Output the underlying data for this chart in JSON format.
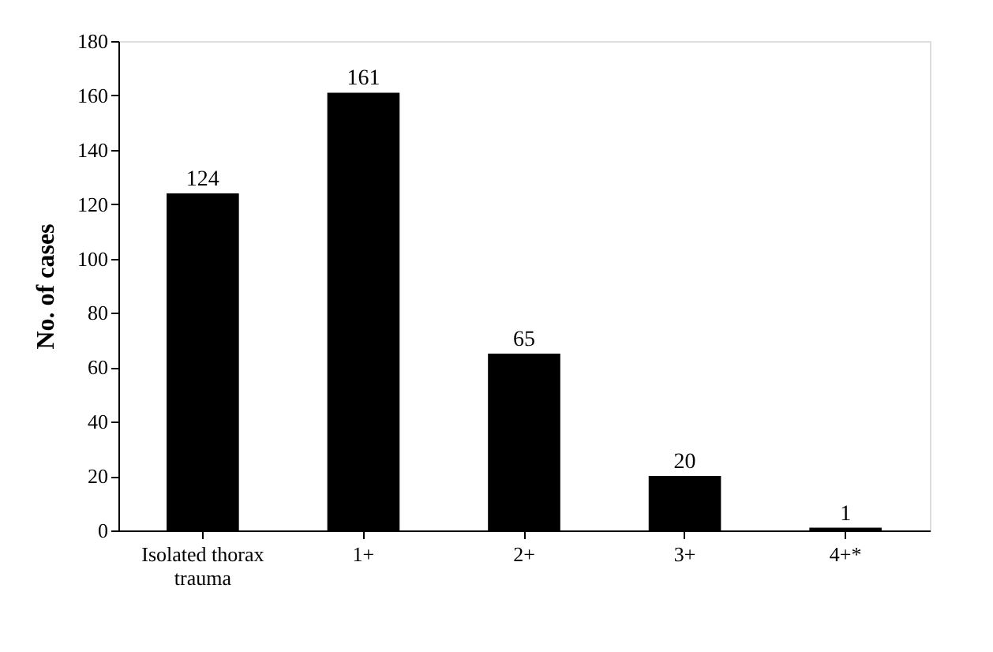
{
  "chart_data": {
    "type": "bar",
    "ylabel": "No. of cases",
    "categories": [
      "Isolated thorax trauma",
      "1+",
      "2+",
      "3+",
      "4+*"
    ],
    "values": [
      124,
      161,
      65,
      20,
      1
    ],
    "color": "#000000",
    "ylim": [
      0,
      180
    ],
    "yticks": [
      0,
      20,
      40,
      60,
      80,
      100,
      120,
      140,
      160,
      180
    ],
    "data_labels": true,
    "grid": false
  }
}
